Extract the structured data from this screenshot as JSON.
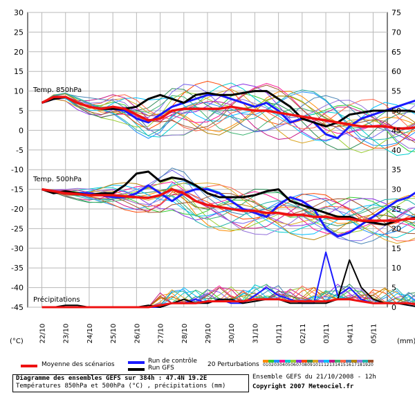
{
  "chart_data": {
    "type": "line",
    "left_axis_unit": "(°C)",
    "right_axis_unit": "(mm)",
    "left_ticks": [
      "30",
      "25",
      "20",
      "15",
      "10",
      "5",
      "0",
      "-5",
      "-10",
      "-15",
      "-20",
      "-25",
      "-30",
      "-35",
      "-40",
      "-45"
    ],
    "right_ticks": [
      "75",
      "70",
      "65",
      "60",
      "55",
      "50",
      "45",
      "40",
      "35",
      "30",
      "25",
      "20",
      "15",
      "10",
      "5",
      "0"
    ],
    "ylim_temp": [
      -45,
      30
    ],
    "ylim_precip": [
      0,
      75
    ],
    "x_dates": [
      "22/10",
      "23/10",
      "24/10",
      "25/10",
      "26/10",
      "27/10",
      "28/10",
      "29/10",
      "30/10",
      "31/10",
      "01/11",
      "02/11",
      "03/11",
      "04/11",
      "05/11"
    ],
    "panel_labels": {
      "t850": "Temp. 850hPa",
      "t500": "Temp. 500hPa",
      "precip": "Précipitations"
    },
    "x_days": [
      0,
      0.5,
      1,
      1.5,
      2,
      2.5,
      3,
      3.5,
      4,
      4.5,
      5,
      5.5,
      6,
      6.5,
      7,
      7.5,
      8,
      8.5,
      9,
      9.5,
      10,
      10.5,
      11,
      11.5,
      12,
      12.5,
      13,
      13.5,
      14,
      14.5,
      15,
      15.5,
      16
    ],
    "series": [
      {
        "name": "Moyenne des scénarios",
        "color": "#ee1111",
        "width": 3.5,
        "kind": "temp",
        "values_850": [
          7,
          8.5,
          8.5,
          7,
          6,
          5.5,
          6,
          5.5,
          4,
          2.5,
          3,
          5,
          5.5,
          5.5,
          5.5,
          5.5,
          6,
          5.5,
          5,
          5,
          4.5,
          4,
          3.5,
          3,
          2.5,
          2,
          1.5,
          1,
          1,
          1,
          0.5,
          0.5,
          1
        ],
        "values_500": [
          -15,
          -15.5,
          -16,
          -16.2,
          -16.5,
          -16.5,
          -16.5,
          -16.8,
          -17,
          -17.2,
          -16.5,
          -15,
          -16,
          -18,
          -19,
          -19.5,
          -20,
          -20.5,
          -20.5,
          -21,
          -21,
          -21.5,
          -21.5,
          -22,
          -22,
          -22.5,
          -22.5,
          -23,
          -23,
          -23,
          -23,
          -22.5,
          -22.5
        ],
        "values_precip": [
          0,
          0,
          0,
          0,
          0,
          0,
          0,
          0,
          0,
          0,
          0.5,
          1,
          1,
          1,
          1.5,
          1.5,
          1.5,
          1.5,
          2,
          2,
          2,
          1.5,
          1.5,
          1.5,
          1.5,
          2,
          2,
          1.5,
          1,
          1,
          1,
          1,
          0.5
        ]
      },
      {
        "name": "Run de contrôle",
        "color": "#1a1aff",
        "width": 3,
        "kind": "temp",
        "values_850": [
          7,
          8,
          8.5,
          7,
          6,
          5.5,
          5.5,
          5,
          3,
          2,
          4,
          6,
          7,
          8,
          9,
          9,
          8,
          7,
          6,
          7,
          5,
          2,
          3,
          2,
          -1,
          -2,
          1,
          3,
          4,
          5,
          6,
          7,
          8
        ],
        "values_500": [
          -15,
          -15.5,
          -16,
          -16,
          -16,
          -16.5,
          -17,
          -17,
          -16,
          -14,
          -16,
          -18,
          -16,
          -15,
          -15,
          -16,
          -18,
          -20,
          -21,
          -22,
          -19,
          -17,
          -18,
          -20,
          -25,
          -27,
          -26,
          -24,
          -22,
          -20,
          -18,
          -17,
          -15
        ],
        "values_precip": [
          0,
          0,
          0,
          0,
          0,
          0,
          0,
          0,
          0,
          0,
          0,
          1,
          1,
          2,
          1,
          2,
          1,
          1,
          3,
          5,
          3,
          2,
          1,
          1,
          14,
          3,
          5,
          2,
          1,
          1,
          1,
          0.5,
          0
        ]
      },
      {
        "name": "Run GFS",
        "color": "#000000",
        "width": 3,
        "kind": "temp",
        "values_850": [
          7,
          8,
          8.5,
          7,
          6,
          5.5,
          5.5,
          5.5,
          6,
          8,
          9,
          8,
          7,
          9,
          9.5,
          9,
          9,
          9.5,
          10,
          10,
          8,
          6,
          3,
          2,
          1,
          2,
          4,
          4.5,
          5,
          5,
          5,
          5,
          4.5
        ],
        "values_500": [
          -15,
          -16,
          -15.5,
          -16,
          -16.5,
          -16,
          -16,
          -14,
          -11,
          -10.5,
          -13,
          -12,
          -12.5,
          -14,
          -16,
          -17,
          -17,
          -17,
          -16.5,
          -15.5,
          -15,
          -18,
          -19,
          -20,
          -21,
          -22,
          -22,
          -23,
          -23.5,
          -24,
          -23,
          -22.5,
          -22
        ],
        "values_precip": [
          0,
          0,
          0.5,
          0.5,
          0,
          0,
          0,
          0,
          0,
          0.5,
          0,
          1,
          2,
          1,
          1,
          2,
          2,
          1,
          1.5,
          2,
          2,
          1,
          1,
          1,
          1,
          2,
          12,
          5,
          2,
          1,
          1,
          0.5,
          0
        ]
      }
    ],
    "perturbations_label": "20 Perturbations",
    "perturbation_numbers": [
      "01",
      "02",
      "03",
      "04",
      "05",
      "06",
      "07",
      "08",
      "09",
      "10",
      "11",
      "12",
      "13",
      "14",
      "15",
      "16",
      "17",
      "18",
      "19",
      "20"
    ],
    "perturbation_colors": [
      "#ff8c00",
      "#32cd32",
      "#1e90ff",
      "#ff1493",
      "#00ced1",
      "#9acd32",
      "#8a2be2",
      "#ff4500",
      "#2e8b57",
      "#daa520",
      "#7b68ee",
      "#00bfff",
      "#c71585",
      "#3cb371",
      "#ff6347",
      "#4682b4",
      "#b8860b",
      "#9370db",
      "#20b2aa",
      "#a0522d"
    ]
  },
  "legend": {
    "mean": "Moyenne des scénarios",
    "control": "Run de contrôle",
    "gfs": "Run GFS",
    "perturbations": "20 Perturbations"
  },
  "info": {
    "line1": "Diagramme des ensembles GEFS sur 384h : 47.4N 19.2E",
    "line2": "Températures 850hPa et 500hPa (°C) , précipitations (mm)",
    "run": "Ensemble GEFS du 21/10/2008 - 12h",
    "copyright": "Copyright 2007 Meteociel.fr"
  }
}
